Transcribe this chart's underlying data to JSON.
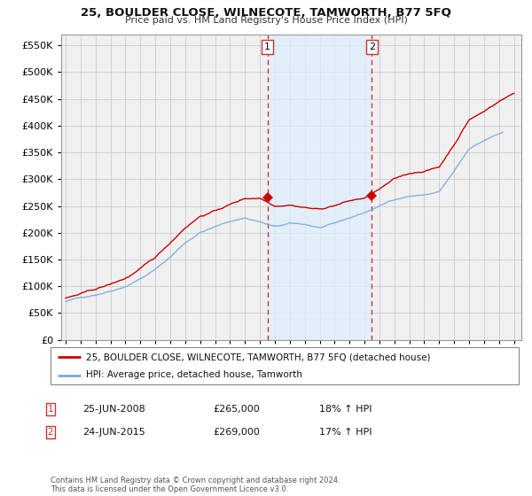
{
  "title": "25, BOULDER CLOSE, WILNECOTE, TAMWORTH, B77 5FQ",
  "subtitle": "Price paid vs. HM Land Registry's House Price Index (HPI)",
  "legend_line1": "25, BOULDER CLOSE, WILNECOTE, TAMWORTH, B77 5FQ (detached house)",
  "legend_line2": "HPI: Average price, detached house, Tamworth",
  "table_rows": [
    {
      "num": "1",
      "date": "25-JUN-2008",
      "price": "£265,000",
      "hpi": "18% ↑ HPI"
    },
    {
      "num": "2",
      "date": "24-JUN-2015",
      "price": "£269,000",
      "hpi": "17% ↑ HPI"
    }
  ],
  "footnote": "Contains HM Land Registry data © Crown copyright and database right 2024.\nThis data is licensed under the Open Government Licence v3.0.",
  "sale1_date": 2008.5,
  "sale1_price": 265000,
  "sale2_date": 2015.5,
  "sale2_price": 269000,
  "vline1_x": 2008.5,
  "vline2_x": 2015.5,
  "ylim": [
    0,
    570000
  ],
  "xlim_start": 1994.7,
  "xlim_end": 2025.5,
  "red_color": "#cc0000",
  "blue_color": "#7aaadd",
  "vline_color": "#cc3333",
  "grid_color": "#cccccc",
  "bg_color": "#ffffff",
  "plot_bg_color": "#f0f0f0",
  "shade_color": "#ddeeff"
}
